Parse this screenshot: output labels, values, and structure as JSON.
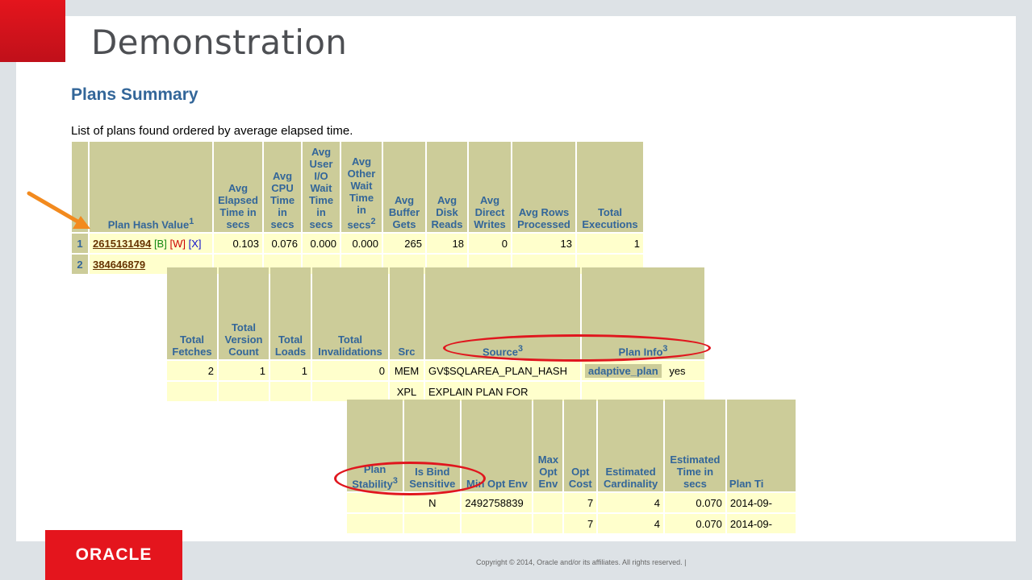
{
  "slide": {
    "title": "Demonstration"
  },
  "plans": {
    "heading": "Plans Summary",
    "subtitle": "List of plans found ordered by average elapsed time.",
    "table1": {
      "headers": [
        "",
        "Plan Hash Value",
        "Avg Elapsed Time in secs",
        "Avg CPU Time in secs",
        "Avg User I/O Wait Time in secs",
        "Avg Other Wait Time in secs",
        "Avg Buffer Gets",
        "Avg Disk Reads",
        "Avg Direct Writes",
        "Avg Rows Processed",
        "Total Executions"
      ],
      "sup_hash": "1",
      "sup_other": "2",
      "rows": [
        {
          "idx": "1",
          "hash": "2615131494",
          "b": "[B]",
          "w": "[W]",
          "x": "[X]",
          "elapsed": "0.103",
          "cpu": "0.076",
          "userio": "0.000",
          "other": "0.000",
          "gets": "265",
          "reads": "18",
          "writes": "0",
          "rows": "13",
          "execs": "1"
        },
        {
          "idx": "2",
          "hash": "384646879"
        }
      ]
    },
    "table2": {
      "headers": [
        "Total Fetches",
        "Total Version Count",
        "Total Loads",
        "Total Invalidations",
        "Src",
        "Source",
        "Plan Info"
      ],
      "sup_source": "3",
      "sup_planinfo": "3",
      "rows": [
        {
          "fetches": "2",
          "versions": "1",
          "loads": "1",
          "invalidations": "0",
          "src": "MEM",
          "source": "GV$SQLAREA_PLAN_HASH",
          "info_label": "adaptive_plan",
          "info_value": "yes"
        },
        {
          "src": "XPL",
          "source": "EXPLAIN PLAN FOR"
        }
      ]
    },
    "table3": {
      "headers": [
        "Plan Stability",
        "Is Bind Sensitive",
        "Min Opt Env",
        "Max Opt Env",
        "Opt Cost",
        "Estimated Cardinality",
        "Estimated Time in secs",
        "Plan Ti"
      ],
      "sup_stability": "3",
      "rows": [
        {
          "bind": "N",
          "minenv": "2492758839",
          "cost": "7",
          "card": "4",
          "time": "0.070",
          "plantime": "2014-09-"
        },
        {
          "cost": "7",
          "card": "4",
          "time": "0.070",
          "plantime": "2014-09-"
        }
      ]
    }
  },
  "footer": {
    "brand": "ORACLE",
    "copyright": "Copyright © 2014, Oracle and/or its affiliates. All rights reserved.  |"
  },
  "colors": {
    "oracle_red": "#e4151d",
    "awr_header": "#cccc99",
    "awr_cell": "#ffffcc",
    "awr_blue": "#336699",
    "annotation_orange": "#f28a1e"
  }
}
